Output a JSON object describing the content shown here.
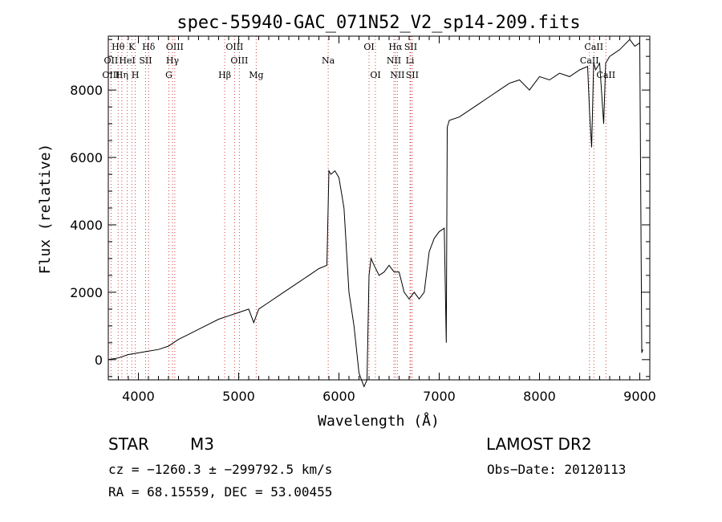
{
  "chart_data": {
    "type": "line",
    "title": "spec-55940-GAC_071N52_V2_sp14-209.fits",
    "xlabel": "Wavelength (Å)",
    "ylabel": "Flux (relative)",
    "xlim": [
      3700,
      9100
    ],
    "ylim": [
      -600,
      9600
    ],
    "x_ticks": [
      4000,
      5000,
      6000,
      7000,
      8000,
      9000
    ],
    "x_tick_labels": [
      "4000",
      "5000",
      "6000",
      "7000",
      "8000",
      "9000"
    ],
    "y_ticks": [
      0,
      2000,
      4000,
      6000,
      8000
    ],
    "y_tick_labels": [
      "0",
      "2000",
      "4000",
      "6000",
      "8000"
    ],
    "grid": false,
    "series": [
      {
        "x": [
          3700,
          3800,
          3900,
          4000,
          4100,
          4200,
          4300,
          4400,
          4500,
          4600,
          4700,
          4800,
          4900,
          5000,
          5100,
          5150,
          5200,
          5300,
          5400,
          5500,
          5600,
          5700,
          5800,
          5880,
          5900,
          5920,
          5960,
          6000,
          6050,
          6100,
          6150,
          6200,
          6250,
          6280,
          6300,
          6320,
          6350,
          6400,
          6450,
          6500,
          6550,
          6600,
          6650,
          6700,
          6750,
          6800,
          6850,
          6900,
          6950,
          7000,
          7050,
          7070,
          7080,
          7090,
          7100,
          7200,
          7300,
          7400,
          7500,
          7600,
          7700,
          7800,
          7900,
          8000,
          8100,
          8200,
          8300,
          8400,
          8480,
          8500,
          8520,
          8540,
          8550,
          8560,
          8600,
          8640,
          8660,
          8680,
          8700,
          8800,
          8900,
          8950,
          9000,
          9020,
          9030
        ],
        "y": [
          0,
          50,
          150,
          200,
          250,
          300,
          400,
          600,
          750,
          900,
          1050,
          1200,
          1300,
          1400,
          1500,
          1100,
          1500,
          1700,
          1900,
          2100,
          2300,
          2500,
          2700,
          2800,
          5600,
          5500,
          5600,
          5400,
          4500,
          2000,
          1000,
          -400,
          -800,
          -600,
          2500,
          3000,
          2800,
          2500,
          2600,
          2800,
          2600,
          2600,
          2000,
          1800,
          2000,
          1800,
          2000,
          3200,
          3600,
          3800,
          3900,
          500,
          6900,
          7000,
          7100,
          7200,
          7400,
          7600,
          7800,
          8000,
          8200,
          8300,
          8000,
          8400,
          8300,
          8500,
          8400,
          8600,
          8700,
          7300,
          6300,
          8800,
          8700,
          8600,
          8800,
          7000,
          8800,
          8900,
          9000,
          9200,
          9500,
          9300,
          9400,
          200,
          300
        ]
      }
    ],
    "lines": {
      "labels": [
        {
          "text": "Hθ",
          "x": 3798,
          "row": 1
        },
        {
          "text": "K",
          "x": 3934,
          "row": 1
        },
        {
          "text": "Hδ",
          "x": 4102,
          "row": 1
        },
        {
          "text": "OIII",
          "x": 4363,
          "row": 1
        },
        {
          "text": "OIII",
          "x": 4959,
          "row": 1
        },
        {
          "text": "OI",
          "x": 6300,
          "row": 1
        },
        {
          "text": "Hα",
          "x": 6563,
          "row": 1
        },
        {
          "text": "SII",
          "x": 6716,
          "row": 1
        },
        {
          "text": "CaII",
          "x": 8542,
          "row": 1
        },
        {
          "text": "OII",
          "x": 3727,
          "row": 2
        },
        {
          "text": "HeI",
          "x": 3889,
          "row": 2
        },
        {
          "text": "SII",
          "x": 4072,
          "row": 2
        },
        {
          "text": "Hγ",
          "x": 4340,
          "row": 2
        },
        {
          "text": "OIII",
          "x": 5007,
          "row": 2
        },
        {
          "text": "Na",
          "x": 5893,
          "row": 2
        },
        {
          "text": "NII",
          "x": 6548,
          "row": 2
        },
        {
          "text": "Li",
          "x": 6708,
          "row": 2
        },
        {
          "text": "CaII",
          "x": 8498,
          "row": 2
        },
        {
          "text": "OIII",
          "x": 3727,
          "row": 3
        },
        {
          "text": "Hη",
          "x": 3835,
          "row": 3
        },
        {
          "text": "H",
          "x": 3969,
          "row": 3
        },
        {
          "text": "G",
          "x": 4304,
          "row": 3
        },
        {
          "text": "Hβ",
          "x": 4861,
          "row": 3
        },
        {
          "text": "Mg",
          "x": 5175,
          "row": 3
        },
        {
          "text": "OI",
          "x": 6364,
          "row": 3
        },
        {
          "text": "NII",
          "x": 6583,
          "row": 3
        },
        {
          "text": "SII",
          "x": 6731,
          "row": 3
        },
        {
          "text": "CaII",
          "x": 8662,
          "row": 3
        }
      ],
      "markers": [
        3727,
        3798,
        3835,
        3889,
        3934,
        3969,
        4072,
        4102,
        4304,
        4340,
        4363,
        4861,
        4959,
        5007,
        5175,
        5893,
        6300,
        6364,
        6548,
        6563,
        6583,
        6708,
        6716,
        6731,
        8498,
        8542,
        8662
      ],
      "marker_color": "#d04040"
    }
  },
  "info": {
    "class": "STAR",
    "subclass": "M3",
    "survey": "LAMOST DR2",
    "cz": "cz = −1260.3 ± −299792.5 km/s",
    "obs_date": "Obs−Date: 20120113",
    "radec": "RA =  68.15559, DEC =  53.00455"
  }
}
